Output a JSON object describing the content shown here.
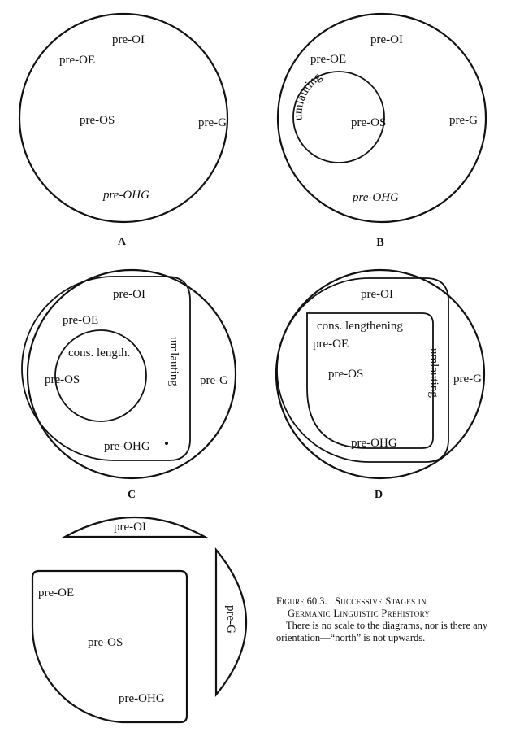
{
  "panels": {
    "A": {
      "letter": "A",
      "labels": {
        "oi": "pre-OI",
        "oe": "pre-OE",
        "os": "pre-OS",
        "g": "pre-G",
        "ohg": "pre-OHG"
      }
    },
    "B": {
      "letter": "B",
      "labels": {
        "oi": "pre-OI",
        "oe": "pre-OE",
        "os": "pre-OS",
        "g": "pre-G",
        "ohg": "pre-OHG"
      },
      "isogloss": "umlauting"
    },
    "C": {
      "letter": "C",
      "labels": {
        "oi": "pre-OI",
        "oe": "pre-OE",
        "os": "pre-OS",
        "g": "pre-G",
        "ohg": "pre-OHG"
      },
      "isogloss_umlaut": "umlauting",
      "isogloss_length": "cons. length."
    },
    "D": {
      "letter": "D",
      "labels": {
        "oi": "pre-OI",
        "oe": "pre-OE",
        "os": "pre-OS",
        "g": "pre-G",
        "ohg": "pre-OHG"
      },
      "isogloss_umlaut": "umlauting",
      "isogloss_length": "cons. lengthening"
    },
    "E": {
      "labels": {
        "oi": "pre-OI",
        "oe": "pre-OE",
        "os": "pre-OS",
        "g": "pre-G",
        "ohg": "pre-OHG"
      }
    }
  },
  "caption": {
    "figure": "Figure 60.3.",
    "title_line1": "Successive Stages in",
    "title_line2": "Germanic Linguistic Prehistory",
    "body": "There is no scale to the diagrams, nor is there any orientation—“north” is not upwards."
  }
}
